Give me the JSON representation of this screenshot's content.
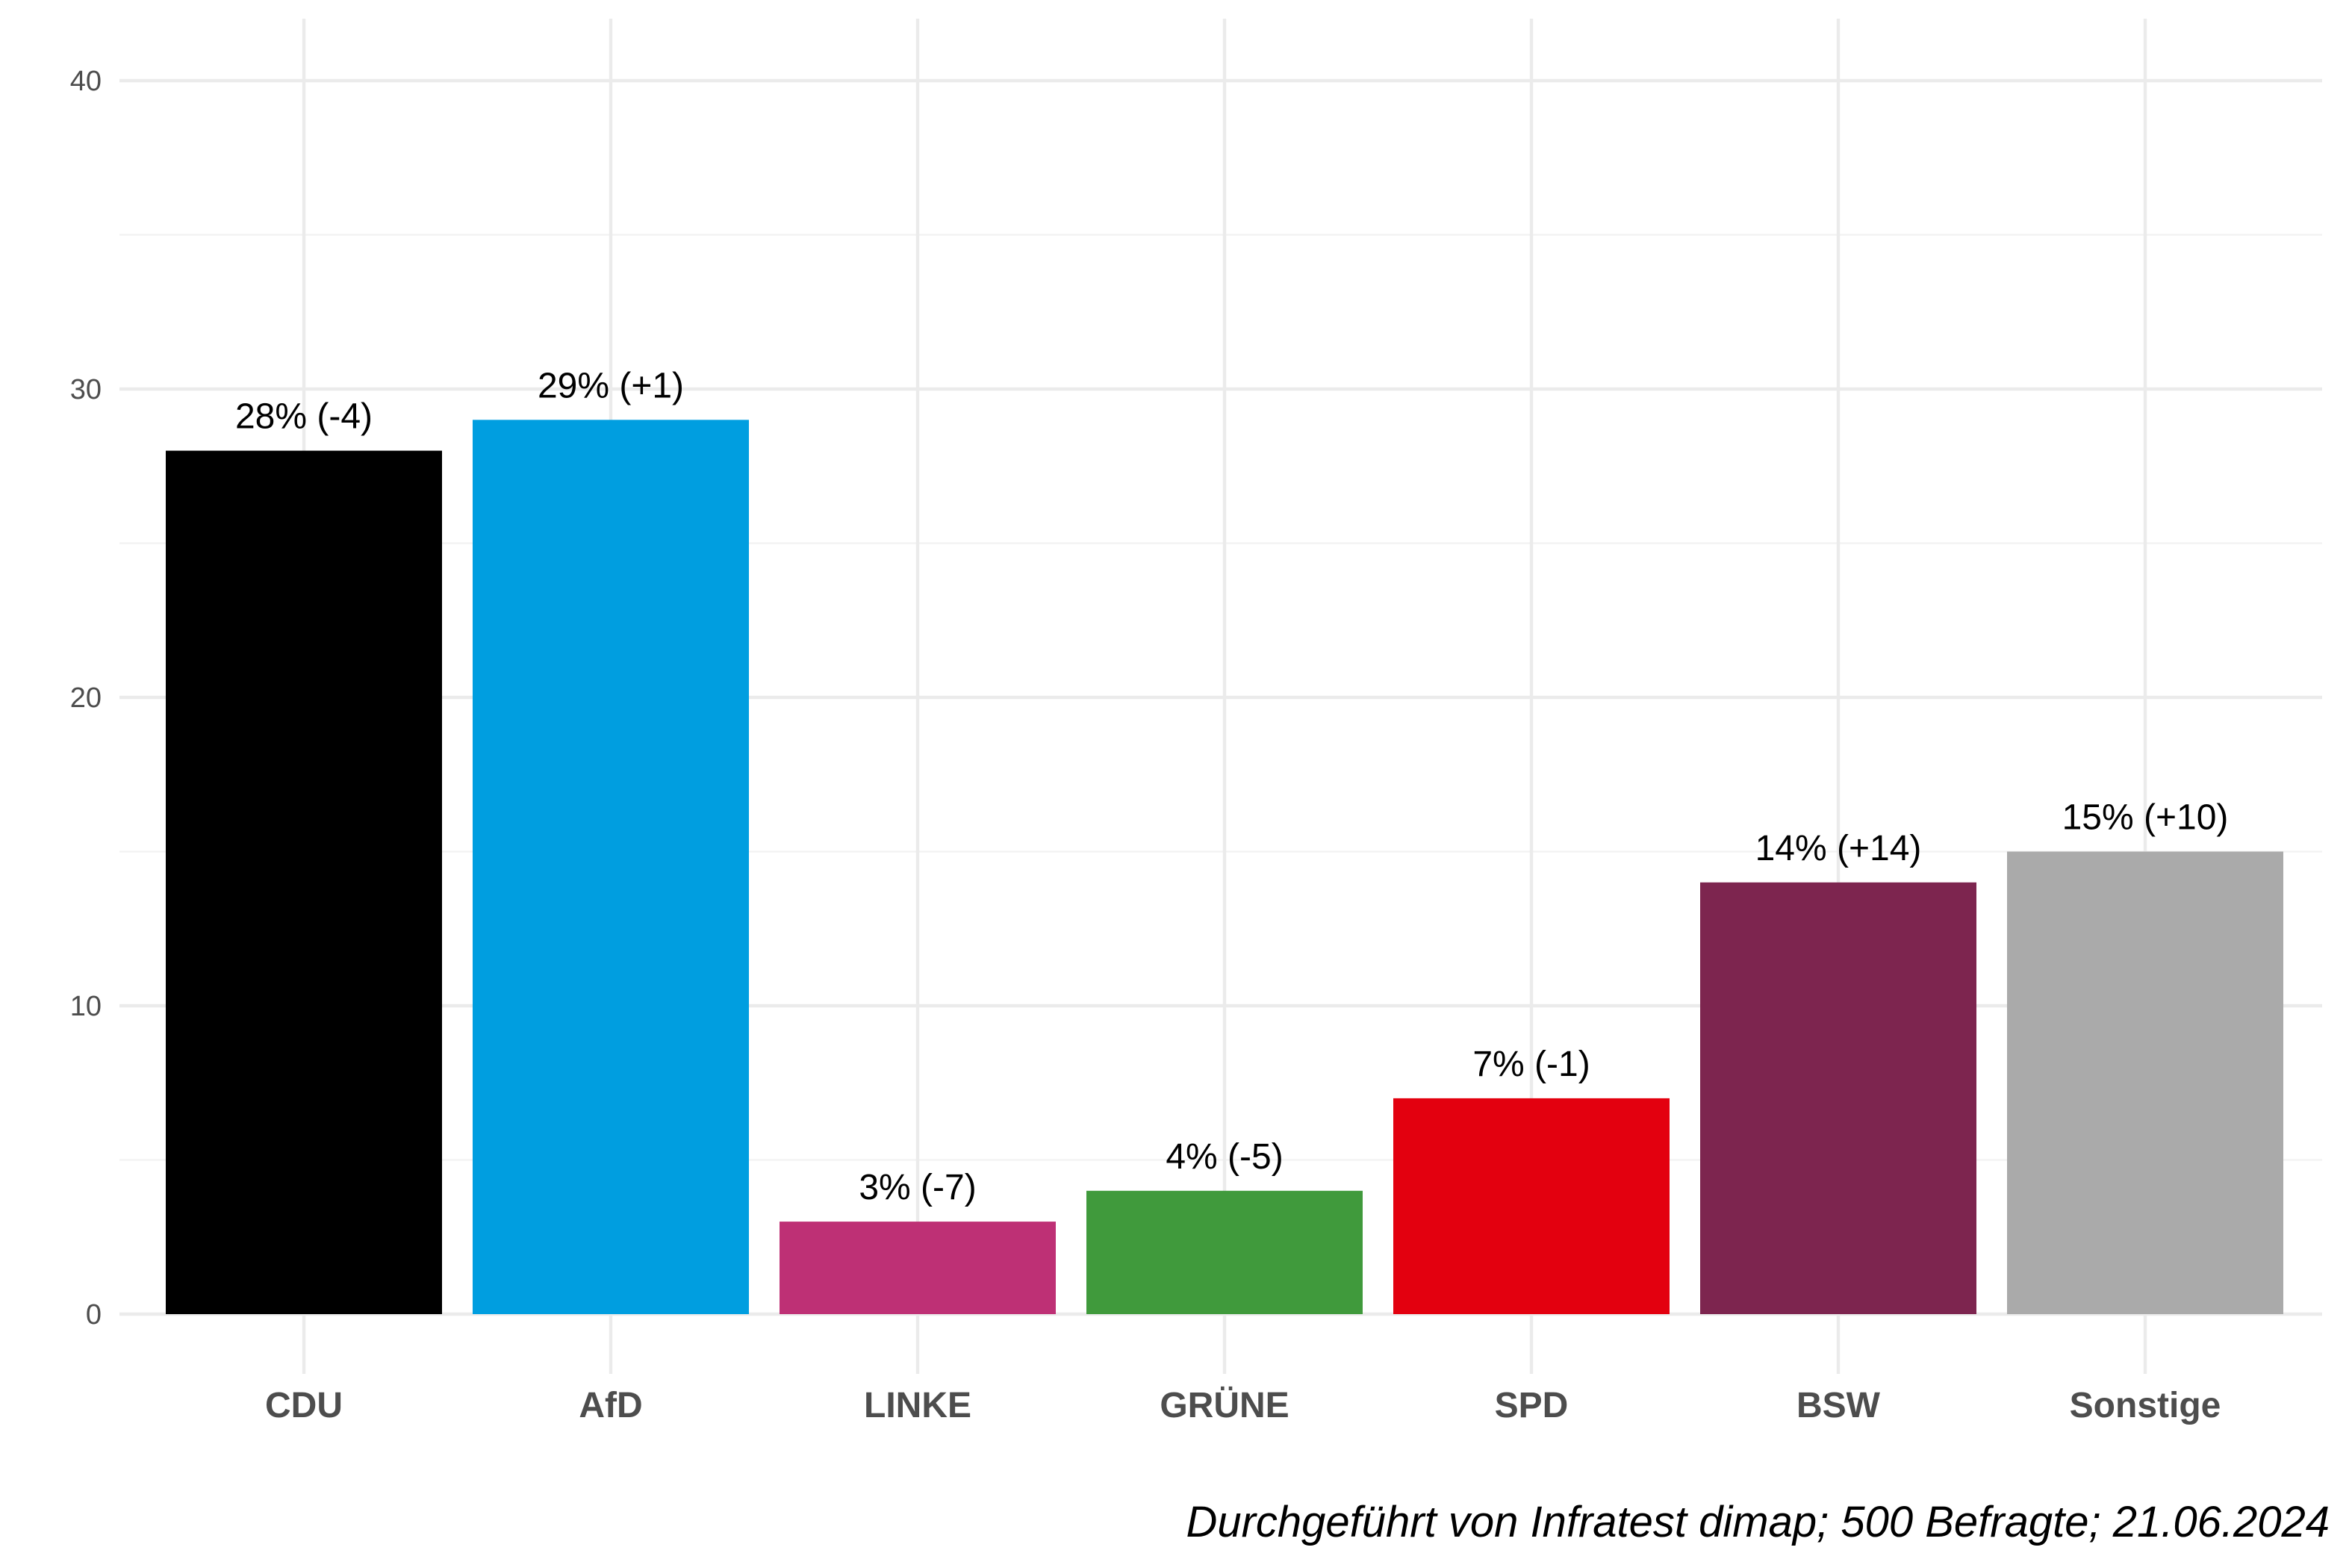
{
  "chart_data": {
    "type": "bar",
    "categories": [
      "CDU",
      "AfD",
      "LINKE",
      "GRÜNE",
      "SPD",
      "BSW",
      "Sonstige"
    ],
    "values": [
      28,
      29,
      3,
      4,
      7,
      14,
      15
    ],
    "data_labels": [
      "28% (-4)",
      "29% (+1)",
      "3% (-7)",
      "4% (-5)",
      "7% (-1)",
      "14% (+14)",
      "15% (+10)"
    ],
    "colors": [
      "#000000",
      "#009ee0",
      "#be3075",
      "#409a3c",
      "#e3000f",
      "#7d254f",
      "#aaaaaa"
    ],
    "y_ticks": [
      0,
      10,
      20,
      30,
      40
    ],
    "ylim": [
      0,
      40
    ],
    "grid": true,
    "legend": "none",
    "caption": "Durchgeführt von Infratest dimap; 500 Befragte; 21.06.2024"
  }
}
